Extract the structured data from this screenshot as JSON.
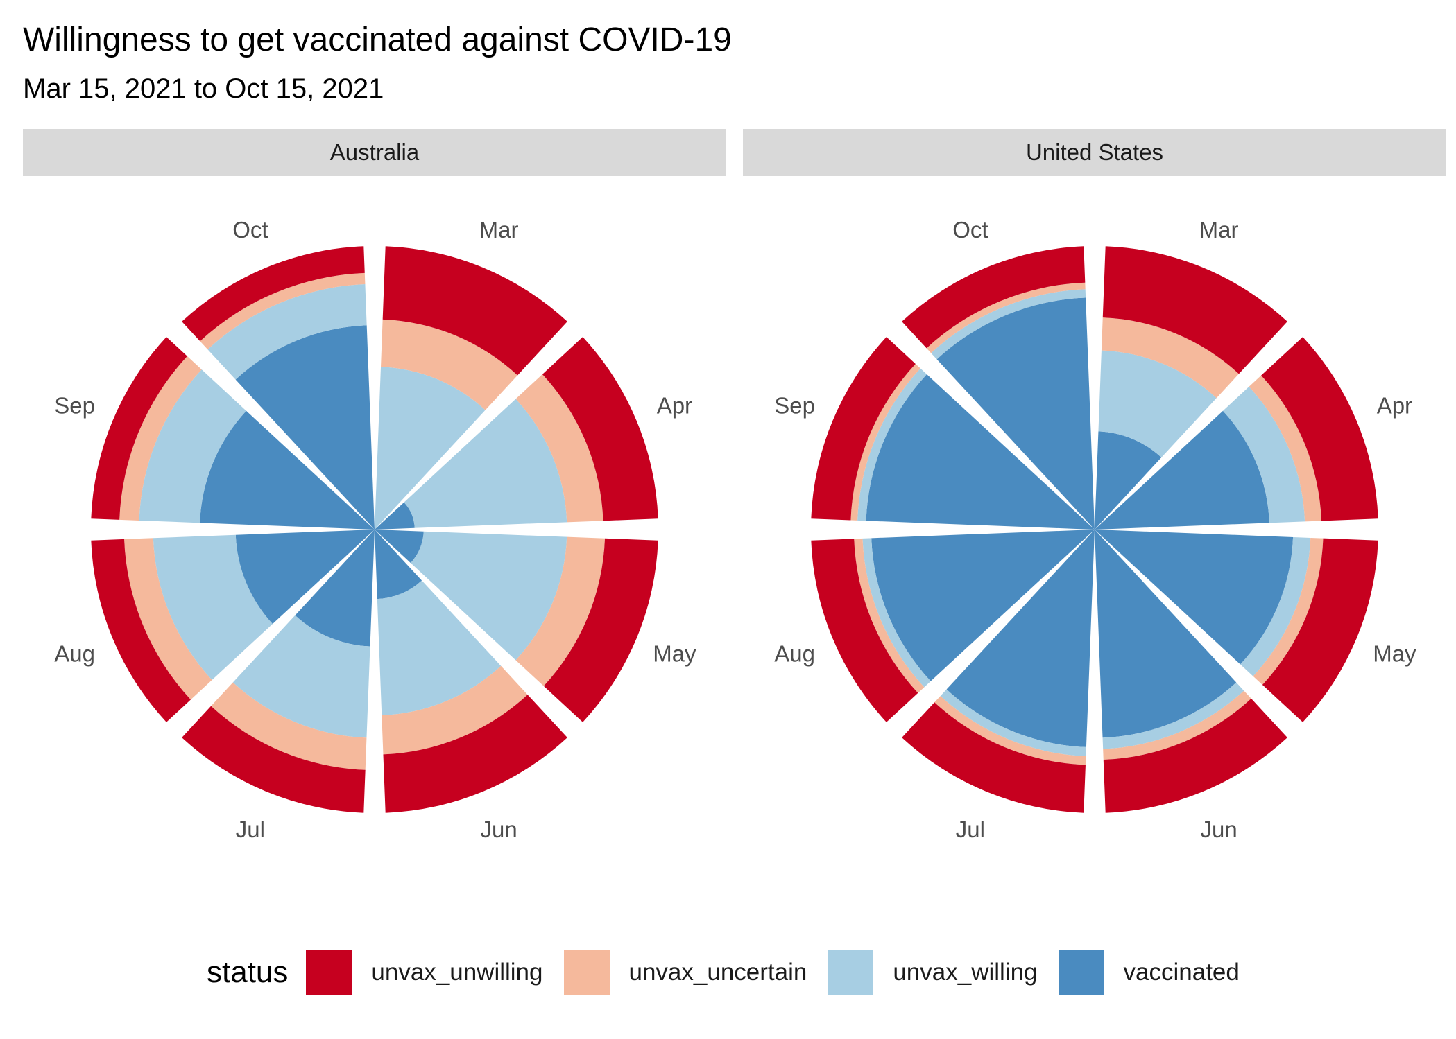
{
  "title": "Willingness to get vaccinated against COVID-19",
  "subtitle": "Mar 15, 2021 to Oct 15, 2021",
  "legend": {
    "title": "status",
    "items": [
      {
        "label": "unvax_unwilling",
        "color": "#c6001f"
      },
      {
        "label": "unvax_uncertain",
        "color": "#f5b99c"
      },
      {
        "label": "unvax_willing",
        "color": "#a7cee3"
      },
      {
        "label": "vaccinated",
        "color": "#4a8bc0"
      }
    ]
  },
  "chart_data": {
    "type": "polar-bar",
    "months": [
      "Mar",
      "Apr",
      "May",
      "Jun",
      "Jul",
      "Aug",
      "Sep",
      "Oct"
    ],
    "status_order": [
      "vaccinated",
      "unvax_willing",
      "unvax_uncertain",
      "unvax_unwilling"
    ],
    "colors": {
      "unvax_unwilling": "#c6001f",
      "unvax_uncertain": "#f5b99c",
      "unvax_willing": "#a7cee3",
      "vaccinated": "#4a8bc0"
    },
    "panels": [
      {
        "name": "Australia",
        "vaccinated": [
          0.0,
          0.02,
          0.03,
          0.06,
          0.17,
          0.24,
          0.38,
          0.52
        ],
        "unvax_willing": [
          0.33,
          0.44,
          0.43,
          0.37,
          0.37,
          0.37,
          0.31,
          0.23
        ],
        "unvax_uncertain": [
          0.22,
          0.19,
          0.2,
          0.2,
          0.18,
          0.17,
          0.12,
          0.07
        ],
        "unvax_unwilling": [
          0.45,
          0.35,
          0.34,
          0.37,
          0.28,
          0.22,
          0.19,
          0.18
        ]
      },
      {
        "name": "United States",
        "vaccinated": [
          0.12,
          0.38,
          0.49,
          0.54,
          0.59,
          0.62,
          0.65,
          0.67
        ],
        "unvax_willing": [
          0.28,
          0.17,
          0.09,
          0.06,
          0.05,
          0.05,
          0.05,
          0.05
        ],
        "unvax_uncertain": [
          0.16,
          0.09,
          0.07,
          0.06,
          0.05,
          0.05,
          0.04,
          0.04
        ],
        "unvax_unwilling": [
          0.44,
          0.36,
          0.35,
          0.34,
          0.31,
          0.28,
          0.26,
          0.24
        ]
      }
    ]
  }
}
